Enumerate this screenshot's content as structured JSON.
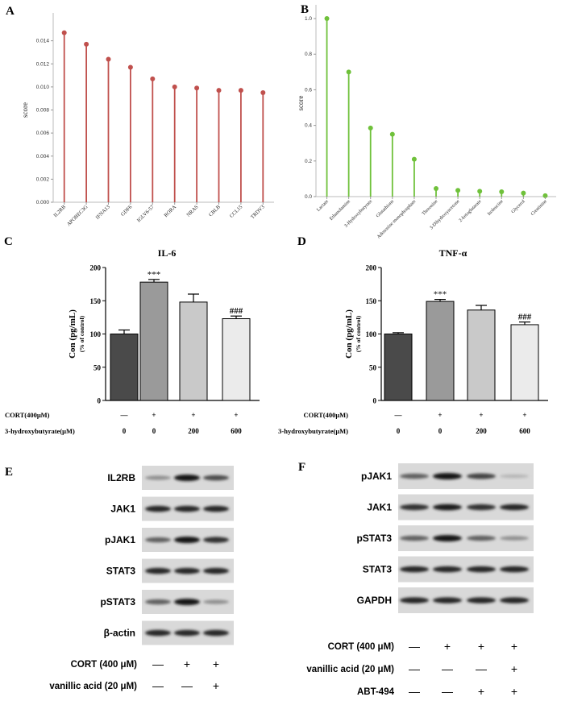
{
  "chart_data": [
    {
      "panel": "A",
      "type": "lollipop",
      "ylabel": "score",
      "ylim": [
        0,
        0.016
      ],
      "yticks": [
        "0.000",
        "0.002",
        "0.004",
        "0.006",
        "0.008",
        "0.010",
        "0.012",
        "0.014"
      ],
      "categories": [
        "IL2RB",
        "APOBEC3G",
        "IFNA13",
        "GDF6",
        "IGLV6-57",
        "RORA",
        "NRAS",
        "CBLB",
        "CCL15",
        "TRDV3"
      ],
      "values": [
        0.0147,
        0.0137,
        0.0124,
        0.0117,
        0.0107,
        0.01,
        0.0099,
        0.0097,
        0.0097,
        0.0095
      ],
      "color": "#c0504d"
    },
    {
      "panel": "B",
      "type": "lollipop",
      "ylabel": "score",
      "ylim": [
        0,
        1.05
      ],
      "yticks": [
        "0.0",
        "0.2",
        "0.4",
        "0.6",
        "0.8",
        "1.0"
      ],
      "categories": [
        "Lactate",
        "Ethanolamine",
        "3-Hydroxybutyrate",
        "Glutathione",
        "Adenosine monophosphate",
        "Threonine",
        "3-Dihydroxyacetone",
        "2-ketoglutarate",
        "Isoleucine",
        "Glycerol",
        "Creatinine"
      ],
      "values": [
        1.0,
        0.7,
        0.385,
        0.35,
        0.21,
        0.045,
        0.035,
        0.03,
        0.027,
        0.02,
        0.005
      ],
      "color": "#6fc13a"
    },
    {
      "panel": "C",
      "type": "bar",
      "title": "IL-6",
      "ylabel": "Con (pg/mL)",
      "ylabel2": "(% of control)",
      "ylim": [
        0,
        200
      ],
      "yticks": [
        "0",
        "50",
        "100",
        "150",
        "200"
      ],
      "values": [
        100,
        178,
        148,
        123
      ],
      "errors": [
        6,
        4,
        12,
        4
      ],
      "annotations": [
        "",
        "***",
        "",
        "###"
      ],
      "bar_colors": [
        "#4a4a4a",
        "#9a9a9a",
        "#c9c9c9",
        "#ebebeb"
      ],
      "conditions": [
        {
          "label": "CORT(400μM)",
          "values": [
            "—",
            "+",
            "+",
            "+"
          ]
        },
        {
          "label": "3-hydroxybutyrate(μM)",
          "values": [
            "0",
            "0",
            "200",
            "600"
          ]
        }
      ]
    },
    {
      "panel": "D",
      "type": "bar",
      "title": "TNF-α",
      "ylabel": "Con (pg/mL)",
      "ylabel2": "(% of control)",
      "ylim": [
        0,
        200
      ],
      "yticks": [
        "0",
        "50",
        "100",
        "150",
        "200"
      ],
      "values": [
        100,
        149,
        136,
        114
      ],
      "errors": [
        2,
        3,
        7,
        4
      ],
      "annotations": [
        "",
        "***",
        "",
        "###"
      ],
      "bar_colors": [
        "#4a4a4a",
        "#9a9a9a",
        "#c9c9c9",
        "#ebebeb"
      ],
      "conditions": [
        {
          "label": "CORT(400μM)",
          "values": [
            "—",
            "+",
            "+",
            "+"
          ]
        },
        {
          "label": "3-hydroxybutyrate(μM)",
          "values": [
            "0",
            "0",
            "200",
            "600"
          ]
        }
      ]
    }
  ],
  "blots": {
    "E": {
      "label": "E",
      "proteins": [
        "IL2RB",
        "JAK1",
        "pJAK1",
        "STAT3",
        "pSTAT3",
        "β-actin"
      ],
      "intensities": [
        [
          0.35,
          1.0,
          0.7
        ],
        [
          0.9,
          0.9,
          0.9
        ],
        [
          0.6,
          1.0,
          0.85
        ],
        [
          0.9,
          0.9,
          0.9
        ],
        [
          0.6,
          1.0,
          0.35
        ],
        [
          0.9,
          0.9,
          0.9
        ]
      ],
      "conditions": [
        {
          "label": "CORT (400 μM)",
          "values": [
            "—",
            "+",
            "+"
          ]
        },
        {
          "label": "vanillic acid (20 μM)",
          "values": [
            "—",
            "—",
            "+"
          ]
        }
      ]
    },
    "F": {
      "label": "F",
      "proteins": [
        "pJAK1",
        "JAK1",
        "pSTAT3",
        "STAT3",
        "GAPDH"
      ],
      "intensities": [
        [
          0.6,
          1.0,
          0.75,
          0.15
        ],
        [
          0.85,
          0.95,
          0.85,
          0.9
        ],
        [
          0.6,
          1.0,
          0.6,
          0.35
        ],
        [
          0.9,
          0.9,
          0.9,
          0.9
        ],
        [
          0.9,
          0.9,
          0.9,
          0.9
        ]
      ],
      "conditions": [
        {
          "label": "CORT (400 μM)",
          "values": [
            "—",
            "+",
            "+",
            "+"
          ]
        },
        {
          "label": "vanillic acid (20 μM)",
          "values": [
            "—",
            "—",
            "—",
            "+"
          ]
        },
        {
          "label": "ABT-494",
          "values": [
            "—",
            "—",
            "+",
            "+"
          ]
        }
      ]
    }
  },
  "panel_labels": [
    "A",
    "B",
    "C",
    "D"
  ]
}
